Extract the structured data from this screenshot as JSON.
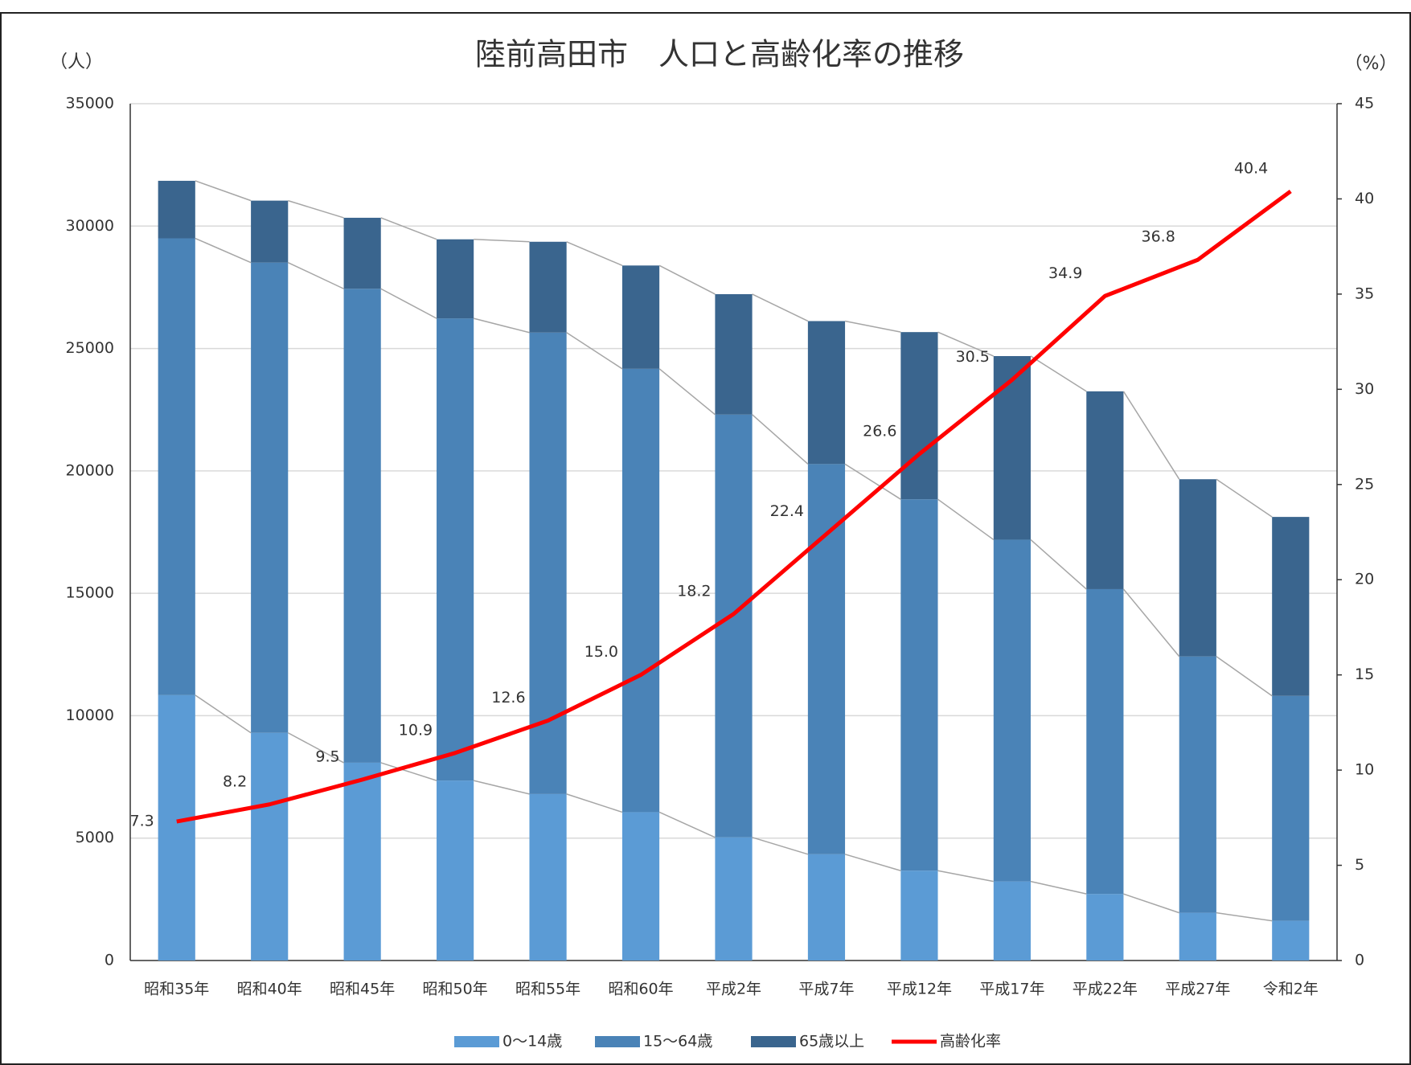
{
  "chart_data": {
    "type": "stacked-bar-line",
    "title": "陸前高田市　人口と高齢化率の推移",
    "y_label": "（人）",
    "y2_label": "（%）",
    "categories": [
      "昭和35年",
      "昭和40年",
      "昭和45年",
      "昭和50年",
      "昭和55年",
      "昭和60年",
      "平成2年",
      "平成7年",
      "平成12年",
      "平成17年",
      "平成22年",
      "平成27年",
      "令和2年"
    ],
    "series": [
      {
        "name": "0～14歳",
        "color": "#5b9bd5",
        "values": [
          10840,
          9300,
          8080,
          7350,
          6800,
          6060,
          5030,
          4340,
          3670,
          3230,
          2720,
          1950,
          1620
        ]
      },
      {
        "name": "15～64歳",
        "color": "#4a83b7",
        "values": [
          18660,
          19210,
          19360,
          18880,
          18850,
          18110,
          17270,
          15940,
          15170,
          13960,
          12450,
          10470,
          9190
        ]
      },
      {
        "name": "65歳以上",
        "color": "#3a658e",
        "values": [
          2350,
          2530,
          2900,
          3230,
          3710,
          4220,
          4920,
          5840,
          6830,
          7500,
          8080,
          7240,
          7310
        ]
      },
      {
        "name": "高齢化率",
        "color": "#ff0000",
        "type": "line",
        "axis": "y2",
        "values": [
          7.3,
          8.2,
          9.5,
          10.9,
          12.6,
          15,
          18.2,
          22.4,
          26.6,
          30.5,
          34.9,
          36.8,
          40.4
        ],
        "value_labels": [
          "7.3",
          "8.2",
          "9.5",
          "10.9",
          "12.6",
          "15.0",
          "18.2",
          "22.4",
          "26.6",
          "30.5",
          "34.9",
          "36.8",
          "40.4"
        ]
      }
    ],
    "ylim": [
      0,
      35000
    ],
    "yticks": [
      0,
      5000,
      10000,
      15000,
      20000,
      25000,
      30000,
      35000
    ],
    "y2lim": [
      0,
      45
    ],
    "y2ticks": [
      0,
      5,
      10,
      15,
      20,
      25,
      30,
      35,
      40,
      45
    ],
    "grid": true,
    "legend": "bottom"
  }
}
